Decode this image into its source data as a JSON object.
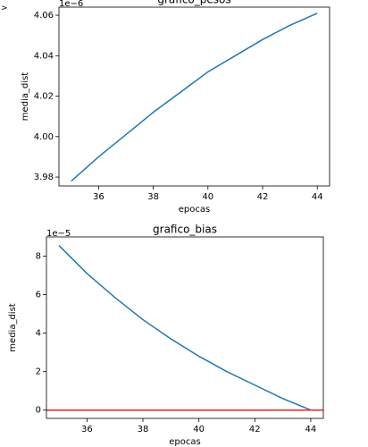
{
  "prompt": ">",
  "chart_data": [
    {
      "type": "line",
      "title": "grafico_pesos",
      "offset_label": "1e−6",
      "x_label": "epocas",
      "y_label": "media_dist",
      "x": [
        35,
        36,
        37,
        38,
        39,
        40,
        41,
        42,
        43,
        44
      ],
      "series": [
        {
          "name": "pesos",
          "color": "#1f77b4",
          "values": [
            3.978,
            3.99,
            4.001,
            4.012,
            4.022,
            4.032,
            4.04,
            4.048,
            4.055,
            4.061
          ]
        }
      ],
      "xlim": [
        34.55,
        44.45
      ],
      "ylim": [
        3.9756,
        4.064
      ],
      "xticks": [
        36,
        38,
        40,
        42,
        44
      ],
      "yticks": [
        3.98,
        {
          "value": 4,
          "label": "4.00"
        },
        4.02,
        4.04,
        4.06
      ]
    },
    {
      "type": "line",
      "title": "grafico_bias",
      "offset_label": "1e−5",
      "x_label": "epocas",
      "y_label": "media_dist",
      "x": [
        35,
        36,
        37,
        38,
        39,
        40,
        41,
        42,
        43,
        44
      ],
      "series": [
        {
          "name": "bias",
          "color": "#1f77b4",
          "values": [
            8.55,
            7.1,
            5.85,
            4.7,
            3.7,
            2.8,
            2.0,
            1.3,
            0.6,
            0.0
          ]
        }
      ],
      "reference_line": {
        "value": 0,
        "color": "#e8261c"
      },
      "xlim": [
        34.55,
        44.45
      ],
      "ylim": [
        -0.43,
        9.0
      ],
      "xticks": [
        36,
        38,
        40,
        42,
        44
      ],
      "yticks": [
        0,
        2,
        4,
        6,
        8
      ]
    }
  ]
}
